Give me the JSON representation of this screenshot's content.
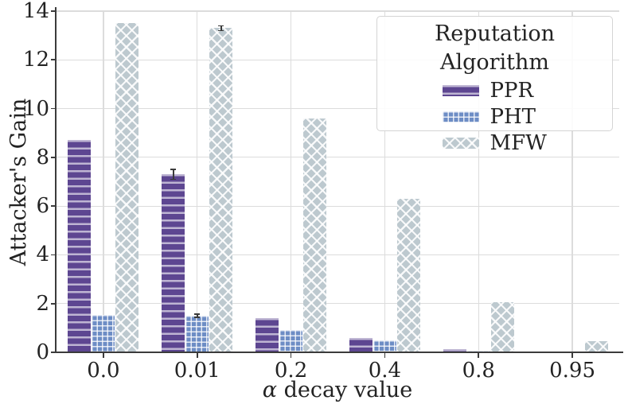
{
  "chart_data": {
    "type": "bar",
    "title": "",
    "xlabel": "α decay value",
    "ylabel": "Attacker's Gain",
    "categories": [
      "0.0",
      "0.01",
      "0.2",
      "0.4",
      "0.8",
      "0.95"
    ],
    "series": [
      {
        "name": "PPR",
        "color": "#5d4691",
        "hatch": "horizontal-lines",
        "values": [
          8.7,
          7.3,
          1.4,
          0.6,
          0.12,
          0
        ],
        "errors": [
          0,
          0.2,
          0,
          0,
          0,
          0
        ]
      },
      {
        "name": "PHT",
        "color": "#6d8dc5",
        "hatch": "grid",
        "values": [
          1.55,
          1.5,
          0.9,
          0.5,
          0.08,
          0
        ],
        "errors": [
          0,
          0.06,
          0,
          0,
          0,
          0
        ]
      },
      {
        "name": "MFW",
        "color": "#bdc9cf",
        "hatch": "diagonal-cross",
        "values": [
          13.5,
          13.3,
          9.6,
          6.3,
          2.05,
          0.45
        ],
        "errors": [
          0,
          0.1,
          0,
          0,
          0,
          0
        ]
      }
    ],
    "ylim": [
      0,
      14
    ],
    "yticks": [
      0,
      2,
      4,
      6,
      8,
      10,
      12,
      14
    ],
    "legend": {
      "title": "Reputation Algorithm",
      "position": "upper-right"
    },
    "grid": true,
    "gridline_color": "#dcdcdc",
    "spine_color": "#3b3b3b",
    "errorbar_color": "#3a3a3a"
  }
}
